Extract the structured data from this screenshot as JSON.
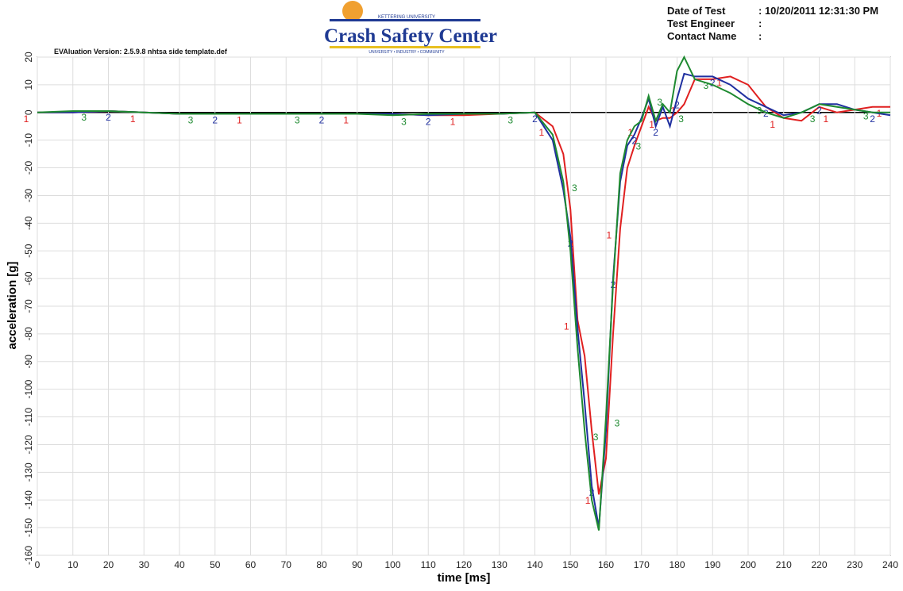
{
  "header": {
    "version": "EVAluation Version: 2.5.9.8 nhtsa side template.def",
    "logo_top": "KETTERING UNIVERSITY",
    "logo_title": "Crash Safety Center",
    "logo_bottom": "UNIVERSITY • INDUSTRY • COMMUNITY",
    "fields": [
      [
        "Date of Test",
        ": 10/20/2011 12:31:30 PM"
      ],
      [
        "Test Engineer",
        ":"
      ],
      [
        "Contact Name",
        ":"
      ]
    ]
  },
  "chart_data": {
    "type": "line",
    "x_label": "time [ms]",
    "y_label": "acceleration [g]",
    "x": [
      0,
      10,
      20,
      30,
      40,
      50,
      60,
      70,
      80,
      90,
      100,
      110,
      120,
      130,
      140,
      145,
      148,
      150,
      152,
      154,
      156,
      158,
      160,
      162,
      164,
      166,
      168,
      170,
      172,
      174,
      176,
      178,
      180,
      182,
      185,
      190,
      195,
      200,
      205,
      210,
      215,
      220,
      225,
      230,
      235,
      240
    ],
    "series": [
      {
        "name": "1",
        "color": "#e02020",
        "values": [
          0,
          0,
          0.5,
          0,
          -0.5,
          -0.5,
          -0.5,
          -0.5,
          -0.5,
          -0.5,
          -0.5,
          -1,
          -1,
          -0.5,
          0,
          -5,
          -15,
          -35,
          -75,
          -88,
          -115,
          -138,
          -125,
          -80,
          -42,
          -20,
          -12,
          -5,
          2,
          -3,
          -2,
          -2,
          0,
          3,
          12,
          12,
          13,
          10,
          2,
          -2,
          -3,
          2,
          0,
          1,
          2,
          2
        ]
      },
      {
        "name": "2",
        "color": "#2030a0",
        "values": [
          0,
          0,
          0.5,
          0,
          -0.5,
          -0.5,
          -0.5,
          -0.5,
          -0.5,
          -0.5,
          -0.5,
          -1,
          -0.5,
          -0.5,
          0,
          -10,
          -28,
          -45,
          -78,
          -105,
          -135,
          -150,
          -115,
          -60,
          -25,
          -12,
          -8,
          -2,
          5,
          -5,
          2,
          -5,
          5,
          14,
          13,
          13,
          10,
          5,
          2,
          -1,
          0,
          3,
          3,
          1,
          0,
          -1
        ]
      },
      {
        "name": "3",
        "color": "#1e8a30",
        "values": [
          0,
          0.5,
          0.5,
          0,
          -0.5,
          -0.5,
          -0.5,
          -0.5,
          -0.5,
          -0.5,
          -1,
          -0.5,
          -0.5,
          -0.5,
          0,
          -8,
          -25,
          -50,
          -85,
          -115,
          -140,
          -151,
          -110,
          -62,
          -22,
          -10,
          -5,
          -3,
          6,
          -3,
          3,
          0,
          15,
          20,
          12,
          10,
          7,
          3,
          0,
          -2,
          0,
          3,
          2,
          1,
          0,
          0
        ]
      }
    ],
    "xlim": [
      0,
      240
    ],
    "xticks": [
      0,
      10,
      20,
      30,
      40,
      50,
      60,
      70,
      80,
      90,
      100,
      110,
      120,
      130,
      140,
      150,
      160,
      170,
      180,
      190,
      200,
      210,
      220,
      230,
      240
    ],
    "ylim": [
      -160,
      20
    ],
    "yticks": [
      20,
      10,
      0,
      -10,
      -20,
      -30,
      -40,
      -50,
      -60,
      -70,
      -80,
      -90,
      -100,
      -110,
      -120,
      -130,
      -140,
      -150,
      -160
    ],
    "grid": true
  }
}
